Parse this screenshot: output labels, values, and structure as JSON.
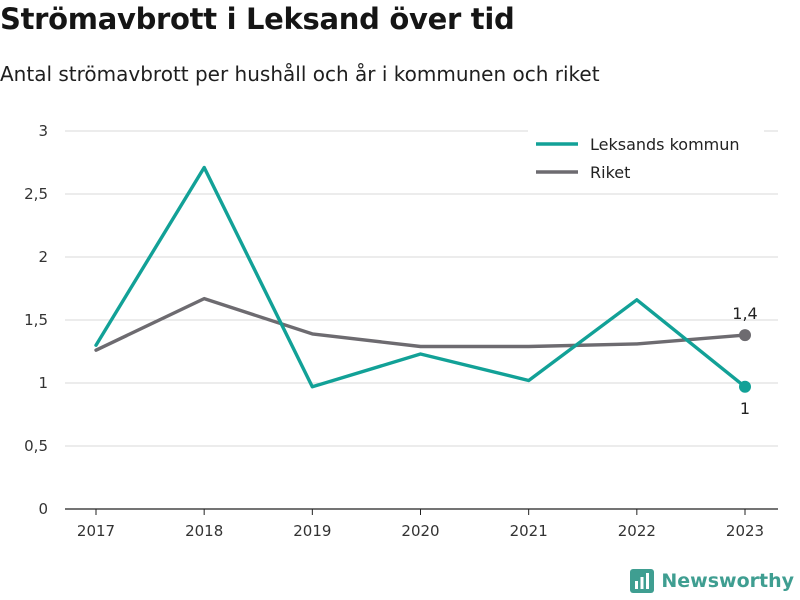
{
  "header": {
    "title": "Strömavbrott i Leksand över tid",
    "subtitle": "Antal strömavbrott per hushåll och år i kommunen och riket"
  },
  "brand": {
    "name": "Newsworthy",
    "icon": "newsworthy-logo-icon"
  },
  "colors": {
    "series_leksand": "#12a197",
    "series_riket": "#6d6b70",
    "grid": "#d8d8d8",
    "brand": "#3f9e91"
  },
  "chart_data": {
    "type": "line",
    "title": "Strömavbrott i Leksand över tid",
    "subtitle": "Antal strömavbrott per hushåll och år i kommunen och riket",
    "x": [
      "2017",
      "2018",
      "2019",
      "2020",
      "2021",
      "2022",
      "2023"
    ],
    "series": [
      {
        "name": "Leksands kommun",
        "values": [
          1.3,
          2.71,
          0.97,
          1.23,
          1.02,
          1.66,
          0.97
        ],
        "color": "#12a197",
        "end_label": "1"
      },
      {
        "name": "Riket",
        "values": [
          1.26,
          1.67,
          1.39,
          1.29,
          1.29,
          1.31,
          1.38
        ],
        "color": "#6d6b70",
        "end_label": "1,4"
      }
    ],
    "ylim": [
      0,
      3
    ],
    "yticks": [
      0,
      0.5,
      1,
      1.5,
      2,
      2.5,
      3
    ],
    "ytick_labels": [
      "0",
      "0,5",
      "1",
      "1,5",
      "2",
      "2,5",
      "3"
    ],
    "grid": true,
    "legend_position": "top-right"
  }
}
